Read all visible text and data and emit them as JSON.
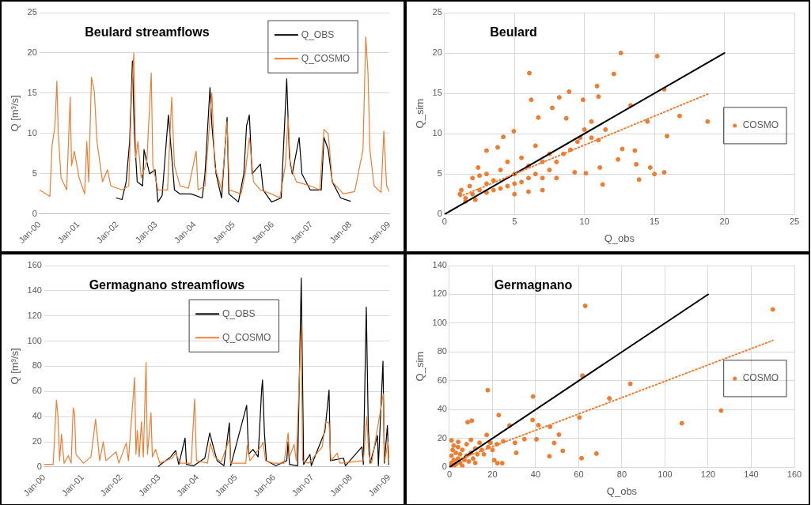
{
  "chart_data": [
    {
      "type": "line",
      "title": "Beulard streamflows",
      "ylabel": "Q [m³/s]",
      "xlim": [
        "2000-01-01",
        "2009-01-01"
      ],
      "xticks": [
        {
          "value": "2000-01-01",
          "label": "Jan-00"
        },
        {
          "value": "2001-01-01",
          "label": "Jan-01"
        },
        {
          "value": "2002-01-01",
          "label": "Jan-02"
        },
        {
          "value": "2003-01-01",
          "label": "Jan-03"
        },
        {
          "value": "2004-01-01",
          "label": "Jan-04"
        },
        {
          "value": "2005-01-01",
          "label": "Jan-05"
        },
        {
          "value": "2006-01-01",
          "label": "Jan-06"
        },
        {
          "value": "2007-01-01",
          "label": "Jan-07"
        },
        {
          "value": "2008-01-01",
          "label": "Jan-08"
        },
        {
          "value": "2009-01-01",
          "label": "Jan-09"
        }
      ],
      "ylim": [
        0,
        25
      ],
      "yticks": [
        0,
        5,
        10,
        15,
        20,
        25
      ],
      "grid": "y",
      "legend": "top right",
      "marker": "none",
      "series": [
        {
          "name": "Q_OBS",
          "color": "#000000",
          "x": [
            "2001-12-24",
            "2002-02-15",
            "2002-03-26",
            "2002-04-28",
            "2002-05-24",
            "2002-06-11",
            "2002-07-08",
            "2002-08-28",
            "2002-09-10",
            "2002-11-01",
            "2002-12-23",
            "2003-01-19",
            "2003-02-27",
            "2003-04-27",
            "2003-05-23",
            "2003-06-23",
            "2003-08-14",
            "2003-11-26",
            "2004-03-10",
            "2004-04-05",
            "2004-05-22",
            "2004-06-09",
            "2004-07-18",
            "2004-09-08",
            "2004-10-30",
            "2004-11-15",
            "2005-02-13",
            "2005-04-05",
            "2005-05-01",
            "2005-05-27",
            "2005-06-22",
            "2005-09-08",
            "2005-10-04",
            "2005-12-21",
            "2006-03-22",
            "2006-05-13",
            "2006-06-08",
            "2006-07-04",
            "2006-09-07",
            "2006-10-03",
            "2006-12-20",
            "2007-04-03",
            "2007-04-28",
            "2007-06-07",
            "2007-07-16",
            "2007-10-02",
            "2008-01-02"
          ],
          "values": [
            2.0,
            1.8,
            4,
            9,
            19,
            10,
            4,
            3.5,
            8,
            5,
            5.5,
            1.5,
            2.3,
            12.3,
            8,
            3,
            2.5,
            2.5,
            2,
            5,
            15.7,
            11,
            5,
            2,
            12,
            2.5,
            1.5,
            5,
            11,
            12.3,
            5,
            6.2,
            3,
            1.5,
            2,
            16.8,
            7,
            5,
            9.5,
            5,
            3,
            3,
            9.5,
            8,
            4,
            2,
            1.6
          ]
        },
        {
          "name": "Q_COSMO",
          "color": "#ed7d31",
          "x": [
            "2000-01-01",
            "2000-04-08",
            "2000-04-29",
            "2000-05-26",
            "2000-06-13",
            "2000-06-26",
            "2000-07-22",
            "2000-09-13",
            "2000-10-16",
            "2000-10-29",
            "2000-11-24",
            "2001-01-08",
            "2001-03-01",
            "2001-03-21",
            "2001-04-08",
            "2001-05-04",
            "2001-05-31",
            "2001-06-25",
            "2001-08-16",
            "2001-10-02",
            "2001-11-02",
            "2002-02-15",
            "2002-04-20",
            "2002-05-16",
            "2002-06-06",
            "2002-06-24",
            "2002-07-15",
            "2002-08-15",
            "2002-10-06",
            "2002-11-17",
            "2002-12-02",
            "2003-01-19",
            "2003-04-19",
            "2003-05-28",
            "2003-06-23",
            "2003-08-14",
            "2003-11-01",
            "2004-01-13",
            "2004-01-31",
            "2004-04-05",
            "2004-05-22",
            "2004-06-09",
            "2004-07-05",
            "2004-09-08",
            "2004-10-30",
            "2004-11-20",
            "2005-03-10",
            "2005-04-18",
            "2005-05-27",
            "2005-07-05",
            "2005-09-08",
            "2005-12-21",
            "2006-03-09",
            "2006-04-30",
            "2006-05-26",
            "2006-06-16",
            "2006-08-12",
            "2006-12-20",
            "2007-03-20",
            "2007-04-28",
            "2007-06-07",
            "2007-07-16",
            "2007-10-28",
            "2008-02-11",
            "2008-04-29",
            "2008-05-25",
            "2008-06-15",
            "2008-07-03",
            "2008-08-11",
            "2008-10-16",
            "2008-11-11",
            "2008-12-07",
            "2009-01-01"
          ],
          "values": [
            3.0,
            2.2,
            8.5,
            11,
            16.5,
            10,
            4.5,
            3.0,
            14.5,
            6,
            7.8,
            4.5,
            2.5,
            9,
            4,
            17,
            15.2,
            9,
            4,
            5.5,
            3.5,
            3,
            3.5,
            15,
            20,
            7,
            9,
            4.5,
            6.5,
            17.5,
            6,
            3,
            3,
            14.5,
            6,
            3.5,
            3.2,
            7.8,
            3,
            3.5,
            12,
            15,
            6,
            3,
            11.5,
            3,
            2.5,
            5,
            9.5,
            4,
            3,
            2.5,
            2,
            6,
            12,
            6,
            4,
            3.5,
            3,
            10.5,
            10,
            4,
            2.5,
            2.8,
            8,
            22,
            17.5,
            8,
            3.5,
            2.7,
            10.3,
            3.5,
            2.8
          ]
        }
      ]
    },
    {
      "type": "scatter",
      "title": "Beulard",
      "xlabel": "Q_obs",
      "ylabel": "Q_sim",
      "xlim": [
        0,
        25
      ],
      "xticks": [
        0,
        5,
        10,
        15,
        20,
        25
      ],
      "ylim": [
        0,
        25
      ],
      "yticks": [
        0,
        5,
        10,
        15,
        20,
        25
      ],
      "grid": true,
      "legend": "right",
      "marker": "circle",
      "series": [
        {
          "name": "COSMO",
          "color": "#ed7d31",
          "x": [
            12.6,
            15.2,
            6.06,
            12.1,
            10.9,
            8.9,
            15.7,
            11.0,
            8.2,
            16.8,
            18.8,
            15.9,
            15.7,
            15.0,
            13.9,
            11.3,
            13.3,
            14.5,
            13.6,
            14.7,
            13.7,
            12.7,
            12.4,
            11.1,
            10.1,
            9.3,
            9.9,
            10.5,
            9.7,
            8.7,
            7.7,
            6.7,
            6.2,
            4.2,
            4.95,
            3.0,
            3.8,
            2.4,
            1.1,
            1.2,
            1.5,
            1.8,
            2,
            2,
            2.5,
            2.5,
            3,
            3,
            3,
            3.5,
            3.5,
            4,
            4,
            4.5,
            4.5,
            5,
            5,
            5.5,
            5.5,
            6,
            6,
            6.5,
            6.5,
            7,
            7,
            7.5,
            7.5,
            8,
            8.5,
            9,
            9.5,
            10,
            10.5,
            11,
            11.5,
            1.5,
            2.2,
            7,
            8,
            6,
            5
          ],
          "values": [
            20.0,
            19.6,
            17.5,
            17.4,
            15.9,
            15.2,
            15.5,
            14.6,
            14.5,
            12.2,
            11.5,
            9.7,
            5.2,
            5.0,
            4.3,
            3.7,
            13.5,
            11.5,
            7.9,
            5.8,
            6.2,
            8.1,
            6.8,
            5.8,
            5.1,
            5.2,
            14.2,
            11.5,
            9.5,
            11.9,
            13.2,
            12.0,
            14.2,
            9.6,
            10.3,
            7.9,
            8.3,
            5.8,
            2.5,
            3.0,
            2.0,
            3.5,
            2.5,
            4.5,
            3,
            4.8,
            2.7,
            3.8,
            5,
            3,
            4.2,
            3.2,
            5.5,
            3.5,
            6.5,
            3.8,
            5,
            4,
            7,
            4.5,
            6,
            5,
            8.5,
            4.5,
            6.5,
            7.5,
            5.5,
            6.5,
            7.5,
            8,
            9,
            10.5,
            9.5,
            9.2,
            10.5,
            1.6,
            1.8,
            3,
            4.5,
            2.8,
            2.5
          ]
        },
        {
          "type": "line",
          "color": "#000000",
          "marker": "none",
          "x": [
            0,
            20
          ],
          "values": [
            0,
            20
          ]
        },
        {
          "type": "line",
          "color": "#ed7d31",
          "marker": "none",
          "line_style": "dotted",
          "x": [
            1.1,
            18.8
          ],
          "values": [
            2.2,
            14.9
          ]
        }
      ]
    },
    {
      "type": "line",
      "title": "Germagnano streamflows",
      "ylabel": "Q [m³/s]",
      "xlim": [
        "2000-01-01",
        "2009-01-01"
      ],
      "xticks": [
        {
          "value": "2000-01-01",
          "label": "Jan-00"
        },
        {
          "value": "2001-01-01",
          "label": "Jan-01"
        },
        {
          "value": "2002-01-01",
          "label": "Jan-02"
        },
        {
          "value": "2003-01-01",
          "label": "Jan-03"
        },
        {
          "value": "2004-01-01",
          "label": "Jan-04"
        },
        {
          "value": "2005-01-01",
          "label": "Jan-05"
        },
        {
          "value": "2006-01-01",
          "label": "Jan-06"
        },
        {
          "value": "2007-01-01",
          "label": "Jan-07"
        },
        {
          "value": "2008-01-01",
          "label": "Jan-08"
        },
        {
          "value": "2009-01-01",
          "label": "Jan-09"
        }
      ],
      "ylim": [
        0,
        160
      ],
      "yticks": [
        0,
        20,
        40,
        60,
        80,
        100,
        120,
        140,
        160
      ],
      "grid": "y",
      "legend": "top",
      "marker": "none",
      "series": [
        {
          "name": "Q_OBS",
          "color": "#000000",
          "x": [
            "2002-12-23",
            "2003-04-19",
            "2003-06-06",
            "2003-07-06",
            "2003-09-04",
            "2003-09-17",
            "2003-11-26",
            "2004-03-10",
            "2004-04-26",
            "2004-05-27",
            "2004-07-05",
            "2004-09-08",
            "2004-10-30",
            "2004-11-12",
            "2005-04-13",
            "2005-05-01",
            "2005-06-12",
            "2005-07-31",
            "2005-09-03",
            "2005-09-11",
            "2005-09-29",
            "2005-10-18",
            "2006-01-16",
            "2006-04-30",
            "2006-05-13",
            "2006-05-26",
            "2006-08-12",
            "2006-09-15",
            "2006-10-08",
            "2006-12-07",
            "2006-12-20",
            "2007-04-28",
            "2007-06-07",
            "2007-06-20",
            "2007-10-23",
            "2007-11-10",
            "2008-04-16",
            "2008-04-29",
            "2008-05-27",
            "2008-06-15",
            "2008-07-03",
            "2008-09-11",
            "2008-09-19",
            "2008-11-02",
            "2008-11-15",
            "2008-12-14",
            "2008-12-27"
          ],
          "values": [
            0.5,
            8,
            13,
            2,
            23,
            2,
            1,
            7,
            27,
            17,
            5,
            1,
            35,
            1,
            49,
            10,
            14,
            8,
            62,
            69,
            27,
            5,
            1,
            5,
            20,
            2,
            1,
            150,
            2,
            10,
            1,
            28,
            61,
            5,
            7,
            1,
            16,
            2,
            127,
            31,
            3,
            25,
            1,
            84,
            3,
            33,
            2
          ]
        },
        {
          "name": "Q_COSMO",
          "color": "#ed7d31",
          "x": [
            "2000-01-01",
            "2000-03-26",
            "2000-04-26",
            "2000-05-10",
            "2000-05-26",
            "2000-06-13",
            "2000-07-08",
            "2000-08-17",
            "2000-09-13",
            "2000-10-03",
            "2000-10-16",
            "2000-10-29",
            "2001-01-08",
            "2001-03-21",
            "2001-05-04",
            "2001-05-22",
            "2001-06-12",
            "2001-07-16",
            "2001-08-11",
            "2001-11-16",
            "2001-12-12",
            "2002-02-20",
            "2002-03-13",
            "2002-05-11",
            "2002-05-24",
            "2002-06-06",
            "2002-06-24",
            "2002-07-15",
            "2002-08-02",
            "2002-08-28",
            "2002-09-10",
            "2002-10-14",
            "2002-10-27",
            "2002-11-27",
            "2003-01-06",
            "2003-05-03",
            "2003-06-06",
            "2003-07-19",
            "2003-11-01",
            "2003-12-04",
            "2003-12-22",
            "2004-04-05",
            "2004-05-01",
            "2004-06-09",
            "2004-08-13",
            "2004-10-30",
            "2004-11-12",
            "2005-04-05",
            "2005-04-18",
            "2005-05-14",
            "2005-09-03",
            "2005-09-16",
            "2005-10-10",
            "2005-12-21",
            "2006-04-04",
            "2006-05-13",
            "2006-05-26",
            "2006-07-09",
            "2006-07-30",
            "2006-09-15",
            "2006-09-28",
            "2006-11-24",
            "2007-04-03",
            "2007-05-04",
            "2007-06-07",
            "2007-06-25",
            "2007-08-24",
            "2007-09-19",
            "2008-04-29",
            "2008-05-31",
            "2008-06-20",
            "2008-07-16",
            "2008-11-05",
            "2008-11-18",
            "2008-12-20",
            "2009-01-01"
          ],
          "values": [
            2,
            2,
            53,
            41,
            5,
            26,
            3,
            9,
            3,
            47,
            42,
            10,
            3,
            8,
            38,
            23,
            5,
            20,
            5,
            12,
            3,
            19,
            5,
            71,
            10,
            29,
            8,
            36,
            8,
            83,
            10,
            43,
            8,
            14,
            3,
            7,
            11,
            3,
            3,
            54,
            5,
            3,
            19,
            8,
            4,
            22,
            3,
            3,
            17,
            5,
            17,
            20,
            5,
            3,
            3,
            27,
            8,
            18,
            5,
            112,
            5,
            3,
            16,
            36,
            35,
            5,
            11,
            3,
            5,
            40,
            10,
            3,
            58,
            4,
            20,
            3
          ]
        }
      ]
    },
    {
      "type": "scatter",
      "title": "Germagnano",
      "xlabel": "Q_obs",
      "ylabel": "Q_sim",
      "xlim": [
        0,
        160
      ],
      "xticks": [
        0,
        20,
        40,
        60,
        80,
        100,
        120,
        140,
        160
      ],
      "ylim": [
        0,
        140
      ],
      "yticks": [
        0,
        20,
        40,
        60,
        80,
        100,
        120,
        140
      ],
      "grid": true,
      "legend": "right",
      "marker": "circle",
      "series": [
        {
          "name": "COSMO",
          "color": "#ed7d31",
          "x": [
            63,
            150,
            61.7,
            83.9,
            17.8,
            38.8,
            74.2,
            126,
            107.8,
            60.3,
            38.6,
            41.3,
            46.7,
            50.8,
            22.9,
            40.4,
            48.6,
            52.6,
            68.2,
            46.4,
            61.3,
            31,
            34.8,
            30.4,
            27.9,
            10.4,
            8.5,
            1,
            20.8,
            22.3,
            24.5,
            4.1,
            17.3,
            0.5,
            1,
            1,
            1.5,
            2,
            2,
            3,
            3,
            4,
            4,
            5,
            5,
            6,
            7,
            8,
            8,
            9,
            10,
            10,
            11,
            12,
            13,
            14,
            15,
            16,
            18,
            19,
            20,
            22,
            25,
            2,
            6,
            12
          ],
          "values": [
            112,
            109.5,
            63.6,
            57.9,
            53.5,
            49.1,
            47.8,
            39.3,
            30.5,
            34.5,
            32.8,
            29.2,
            28.1,
            22.6,
            36.2,
            19.4,
            16.9,
            11.4,
            9.5,
            7.6,
            6.3,
            10,
            19.5,
            17,
            29,
            32.3,
            31.3,
            18.6,
            4.9,
            2.8,
            2.8,
            17.6,
            22.4,
            1,
            3,
            8,
            12,
            5,
            15,
            2,
            10,
            6,
            14,
            3,
            9,
            12,
            5,
            8,
            16,
            4,
            10,
            19,
            6,
            13,
            9,
            17,
            12,
            9,
            14,
            17,
            12,
            16,
            18,
            0.5,
            1,
            3
          ]
        },
        {
          "type": "line",
          "color": "#000000",
          "marker": "none",
          "x": [
            0,
            120
          ],
          "values": [
            0,
            120
          ]
        },
        {
          "type": "line",
          "color": "#ed7d31",
          "marker": "none",
          "line_style": "dotted",
          "x": [
            0,
            150
          ],
          "values": [
            3,
            88
          ]
        }
      ]
    }
  ]
}
